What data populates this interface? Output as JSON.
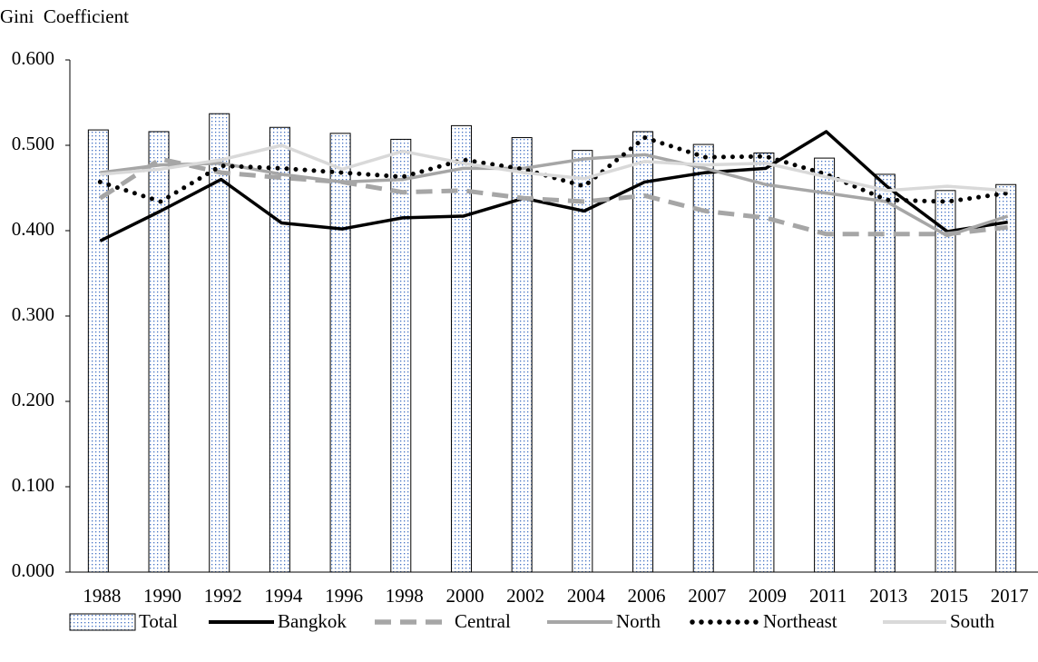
{
  "chart_data": {
    "type": "combo",
    "y_label": "Gini  Coefficient",
    "categories": [
      "1988",
      "1990",
      "1992",
      "1994",
      "1996",
      "1998",
      "2000",
      "2002",
      "2004",
      "2006",
      "2007",
      "2009",
      "2011",
      "2013",
      "2015",
      "2017"
    ],
    "ylim": [
      0,
      0.6
    ],
    "yticks": [
      {
        "value": 0,
        "label": "0.000"
      },
      {
        "value": 0.1,
        "label": "0.100"
      },
      {
        "value": 0.2,
        "label": "0.200"
      },
      {
        "value": 0.3,
        "label": "0.300"
      },
      {
        "value": 0.4,
        "label": "0.400"
      },
      {
        "value": 0.5,
        "label": "0.500"
      },
      {
        "value": 0.6,
        "label": "0.600"
      }
    ],
    "grid": false,
    "legend": "bottom",
    "series": [
      {
        "name": "Total",
        "type": "bar",
        "color": "#4472c4",
        "values": [
          0.518,
          0.516,
          0.537,
          0.521,
          0.514,
          0.507,
          0.523,
          0.509,
          0.494,
          0.516,
          0.501,
          0.491,
          0.485,
          0.466,
          0.447,
          0.454
        ]
      },
      {
        "name": "Bangkok",
        "type": "line",
        "color": "#000000",
        "dash": "solid",
        "values": [
          0.388,
          0.423,
          0.46,
          0.409,
          0.402,
          0.415,
          0.417,
          0.438,
          0.423,
          0.457,
          0.468,
          0.473,
          0.516,
          0.452,
          0.399,
          0.41
        ]
      },
      {
        "name": "Central",
        "type": "line",
        "color": "#a6a6a6",
        "dash": "dashed",
        "values": [
          0.438,
          0.484,
          0.468,
          0.462,
          0.457,
          0.445,
          0.447,
          0.438,
          0.434,
          0.441,
          0.423,
          0.415,
          0.396,
          0.396,
          0.396,
          0.404
        ]
      },
      {
        "name": "North",
        "type": "line",
        "color": "#a6a6a6",
        "dash": "solid",
        "values": [
          0.468,
          0.477,
          0.479,
          0.466,
          0.457,
          0.46,
          0.473,
          0.473,
          0.484,
          0.489,
          0.473,
          0.454,
          0.444,
          0.434,
          0.394,
          0.417
        ]
      },
      {
        "name": "Northeast",
        "type": "line",
        "color": "#000000",
        "dash": "dotted",
        "values": [
          0.457,
          0.434,
          0.476,
          0.473,
          0.468,
          0.463,
          0.483,
          0.472,
          0.452,
          0.509,
          0.486,
          0.487,
          0.466,
          0.436,
          0.434,
          0.444
        ]
      },
      {
        "name": "South",
        "type": "line",
        "color": "#d9d9d9",
        "dash": "solid",
        "values": [
          0.466,
          0.472,
          0.483,
          0.5,
          0.472,
          0.493,
          0.479,
          0.468,
          0.461,
          0.481,
          0.477,
          0.479,
          0.463,
          0.447,
          0.452,
          0.447
        ]
      }
    ]
  }
}
